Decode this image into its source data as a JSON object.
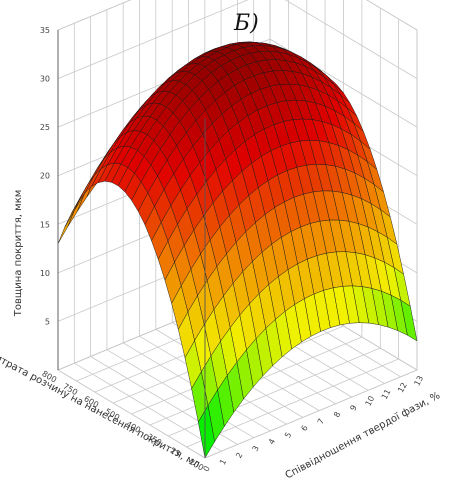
{
  "panel_label": "Б)",
  "chart_data": {
    "type": "surface",
    "title": "",
    "zlabel": "Товщина покриття, мкм",
    "xlabel": "Витрата розчину на нанесення покриття, мл",
    "ylabel": "Співвідношення твердої фази, %",
    "z_ticks": [
      "35",
      "30",
      "25",
      "20",
      "15",
      "10",
      "5"
    ],
    "x_ticks": [
      "800",
      "750",
      "600",
      "500",
      "400",
      "350",
      "25",
      "200"
    ],
    "y_ticks": [
      "0",
      "1",
      "2",
      "3",
      "4",
      "5",
      "6",
      "7",
      "8",
      "9",
      "10",
      "11",
      "12",
      "13"
    ],
    "zlim": [
      0,
      35
    ],
    "xlim": [
      200,
      800
    ],
    "ylim": [
      0,
      13
    ],
    "grid": true,
    "colormap": [
      "#00ee00",
      "#f2f200",
      "#f08000",
      "#e00000",
      "#8a0000"
    ],
    "surface_samples": [
      {
        "x": 200,
        "y": 0,
        "z": 0
      },
      {
        "x": 200,
        "y": 6.5,
        "z": 8
      },
      {
        "x": 200,
        "y": 13,
        "z": 3
      },
      {
        "x": 500,
        "y": 0,
        "z": 22
      },
      {
        "x": 500,
        "y": 6.5,
        "z": 31
      },
      {
        "x": 500,
        "y": 13,
        "z": 24
      },
      {
        "x": 800,
        "y": 0,
        "z": 13
      },
      {
        "x": 800,
        "y": 6.5,
        "z": 21
      },
      {
        "x": 800,
        "y": 13,
        "z": 15
      }
    ]
  }
}
